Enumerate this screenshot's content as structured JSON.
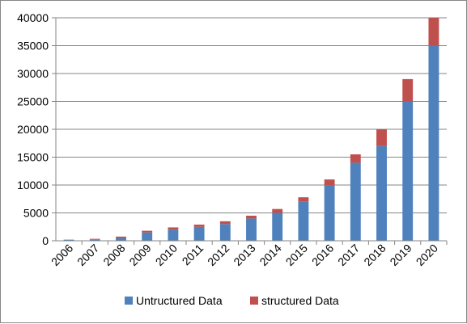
{
  "chart_data": {
    "type": "bar",
    "stacked": true,
    "categories": [
      "2006",
      "2007",
      "2008",
      "2009",
      "2010",
      "2011",
      "2012",
      "2013",
      "2014",
      "2015",
      "2016",
      "2017",
      "2018",
      "2019",
      "2020"
    ],
    "series": [
      {
        "name": "Untructured Data",
        "color": "#4F81BD",
        "values": [
          150,
          250,
          500,
          1500,
          2000,
          2500,
          3000,
          4000,
          5000,
          7000,
          10000,
          14000,
          17000,
          25000,
          35000
        ]
      },
      {
        "name": "structured Data",
        "color": "#C0504D",
        "values": [
          50,
          100,
          250,
          300,
          400,
          400,
          500,
          500,
          700,
          800,
          1000,
          1500,
          3000,
          4000,
          5000
        ]
      }
    ],
    "ylim": [
      0,
      40000
    ],
    "yticks": [
      "0",
      "5000",
      "10000",
      "15000",
      "20000",
      "25000",
      "30000",
      "35000",
      "40000"
    ],
    "grid": true,
    "legend": "bottom",
    "title": "",
    "xlabel": "",
    "ylabel": ""
  }
}
